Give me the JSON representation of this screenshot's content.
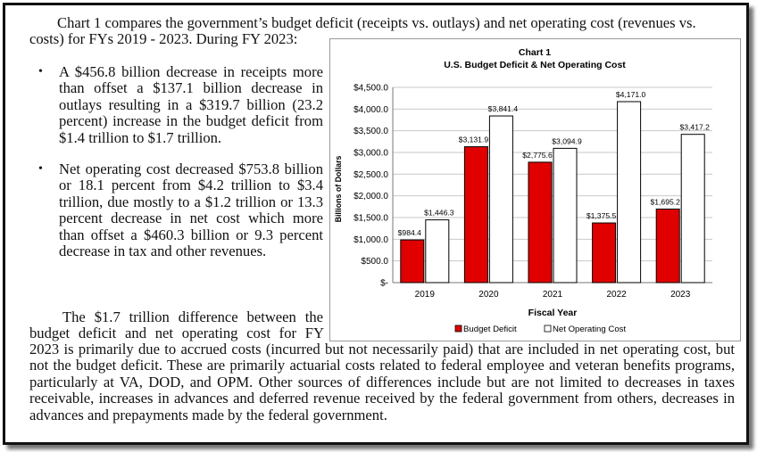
{
  "text": {
    "intro_line1": "Chart 1 compares the government’s budget deficit (receipts vs. outlays) and net operating cost (revenues vs.",
    "intro_line2": "costs) for FYs 2019 - 2023. During FY 2023:",
    "bullet1": "A $456.8 billion decrease in receipts more than offset a $137.1 billion decrease in outlays resulting in a $319.7 billion (23.2 percent) increase in the budget deficit from $1.4 trillion to $1.7 trillion.",
    "bullet2": "Net operating cost decreased $753.8 billion or 18.1 percent from $4.2 trillion to $3.4 trillion, due mostly to a $1.2 trillion or 13.3 percent decrease in net cost which more than offset a $460.3 billion or 9.3 percent decrease in tax and other revenues.",
    "para2_line1": "The $1.7 trillion difference between the",
    "para2_line2": "budget deficit and net operating cost for FY",
    "para2_rest": "2023 is primarily due to accrued costs (incurred but not necessarily paid) that are included in net operating cost, but not the budget deficit. These are primarily actuarial costs related to federal employee and veteran benefits programs, particularly at VA, DOD, and OPM. Other sources of differences include but are not limited to decreases in taxes receivable, increases in advances and deferred revenue received by the federal government from others, decreases in advances and prepayments made by the federal government."
  },
  "chart_data": {
    "type": "bar",
    "title": "Chart 1",
    "subtitle": "U.S. Budget Deficit & Net Operating Cost",
    "xlabel": "Fiscal Year",
    "ylabel": "Billions of Dollars",
    "categories": [
      "2019",
      "2020",
      "2021",
      "2022",
      "2023"
    ],
    "series": [
      {
        "name": "Budget Deficit",
        "color": "#e00000",
        "values": [
          984.4,
          3131.9,
          2775.6,
          1375.5,
          1695.2
        ],
        "labels": [
          "$984.4",
          "$3,131.9",
          "$2,775.6",
          "$1,375.5",
          "$1,695.2"
        ]
      },
      {
        "name": "Net Operating Cost",
        "color": "#ffffff",
        "values": [
          1446.3,
          3841.4,
          3094.9,
          4171.0,
          3417.2
        ],
        "labels": [
          "$1,446.3",
          "$3,841.4",
          "$3,094.9",
          "$4,171.0",
          "$3,417.2"
        ]
      }
    ],
    "ylim": [
      0,
      4500
    ],
    "yticks": [
      0,
      500,
      1000,
      1500,
      2000,
      2500,
      3000,
      3500,
      4000,
      4500
    ],
    "ytick_labels": [
      "$-",
      "$500.0",
      "$1,000.0",
      "$1,500.0",
      "$2,000.0",
      "$2,500.0",
      "$3,000.0",
      "$3,500.0",
      "$4,000.0",
      "$4,500.0"
    ],
    "grid": true,
    "legend": "bottom"
  }
}
